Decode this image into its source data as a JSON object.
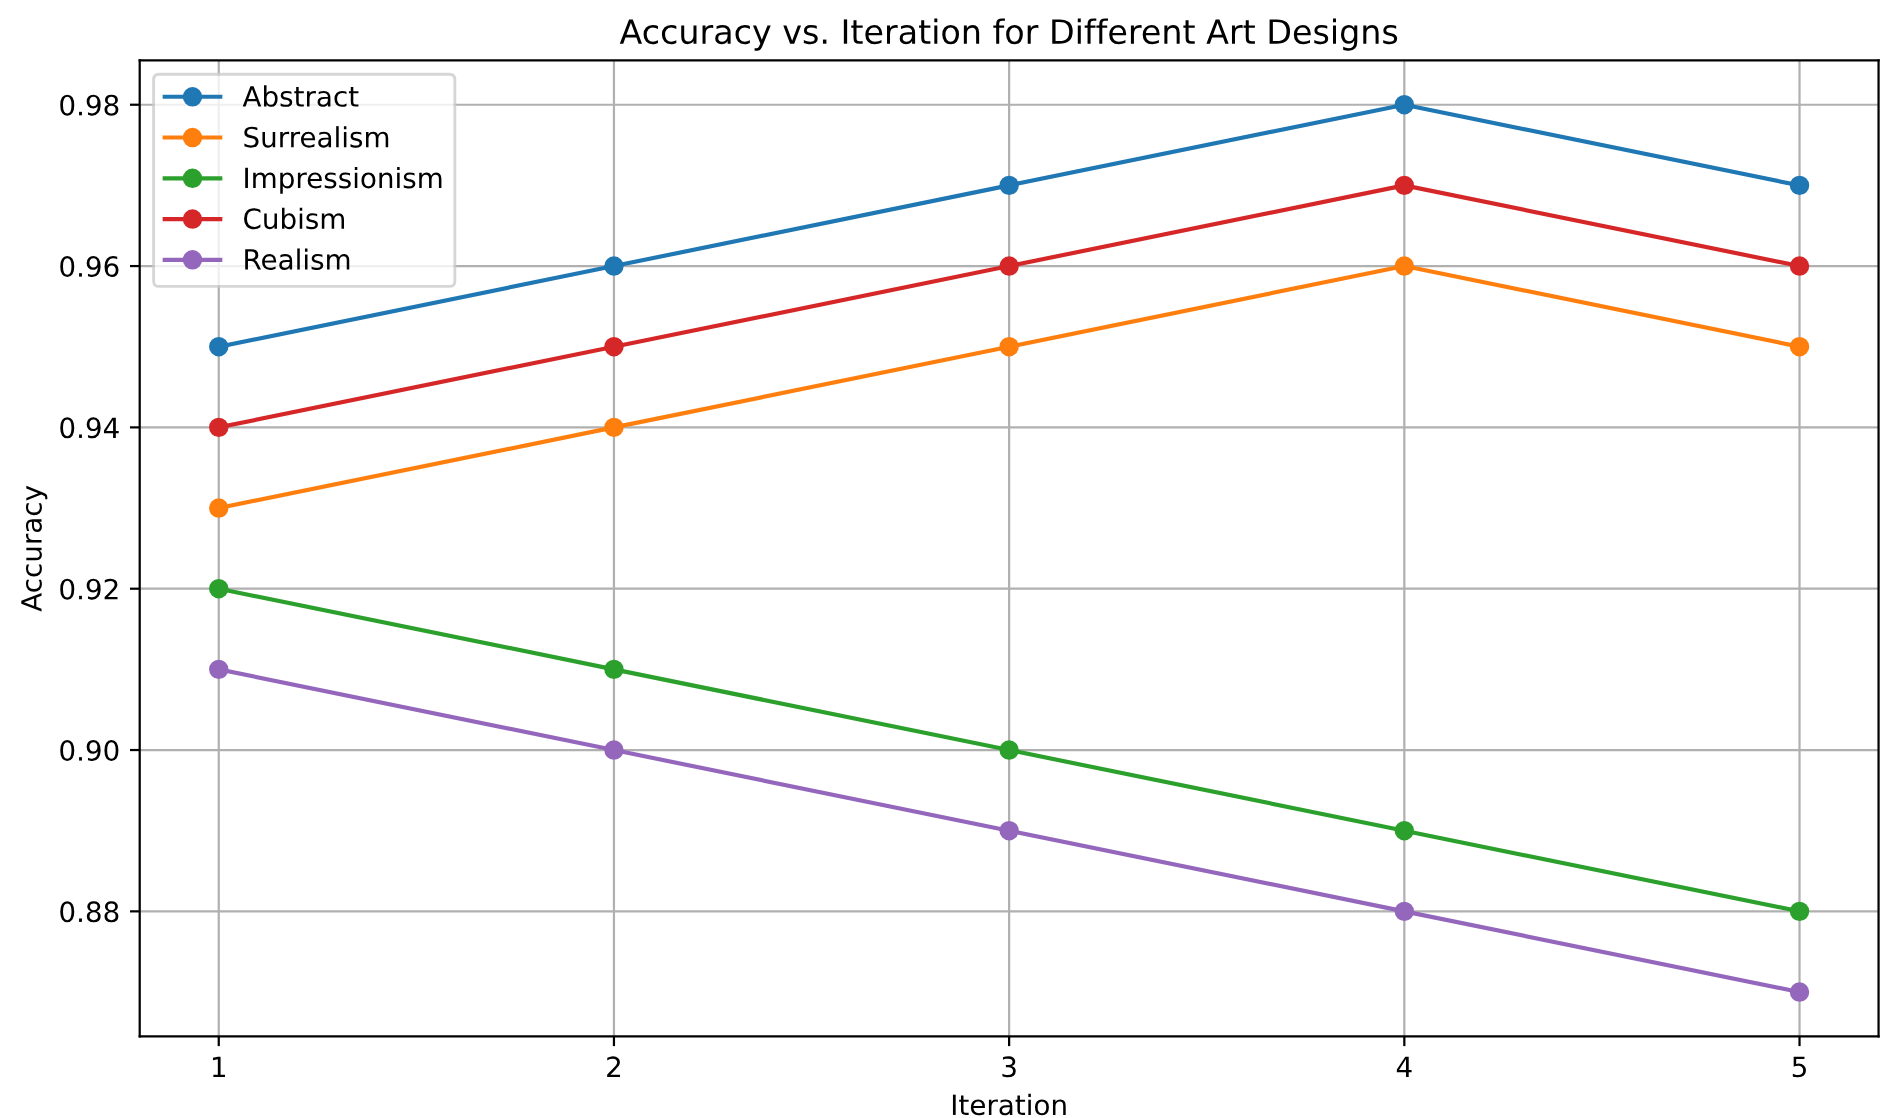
{
  "chart_data": {
    "type": "line",
    "title": "Accuracy vs. Iteration for Different Art Designs",
    "xlabel": "Iteration",
    "ylabel": "Accuracy",
    "x": [
      1,
      2,
      3,
      4,
      5
    ],
    "series": [
      {
        "name": "Abstract",
        "color": "#1f77b4",
        "values": [
          0.95,
          0.96,
          0.97,
          0.98,
          0.97
        ]
      },
      {
        "name": "Surrealism",
        "color": "#ff7f0e",
        "values": [
          0.93,
          0.94,
          0.95,
          0.96,
          0.95
        ]
      },
      {
        "name": "Impressionism",
        "color": "#2ca02c",
        "values": [
          0.92,
          0.91,
          0.9,
          0.89,
          0.88
        ]
      },
      {
        "name": "Cubism",
        "color": "#d62728",
        "values": [
          0.94,
          0.95,
          0.96,
          0.97,
          0.96
        ]
      },
      {
        "name": "Realism",
        "color": "#9467bd",
        "values": [
          0.91,
          0.9,
          0.89,
          0.88,
          0.87
        ]
      }
    ],
    "xlim": [
      0.8,
      5.2
    ],
    "xticks": [
      1,
      2,
      3,
      4,
      5
    ],
    "ylim": [
      0.8645,
      0.9855
    ],
    "yticks": [
      {
        "value": 0.88,
        "label": "0.88"
      },
      {
        "value": 0.9,
        "label": "0.90"
      },
      {
        "value": 0.92,
        "label": "0.92"
      },
      {
        "value": 0.94,
        "label": "0.94"
      },
      {
        "value": 0.96,
        "label": "0.96"
      },
      {
        "value": 0.98,
        "label": "0.98"
      }
    ],
    "grid": true,
    "legend": "top left",
    "marker": "circle",
    "line_style": "solid"
  }
}
